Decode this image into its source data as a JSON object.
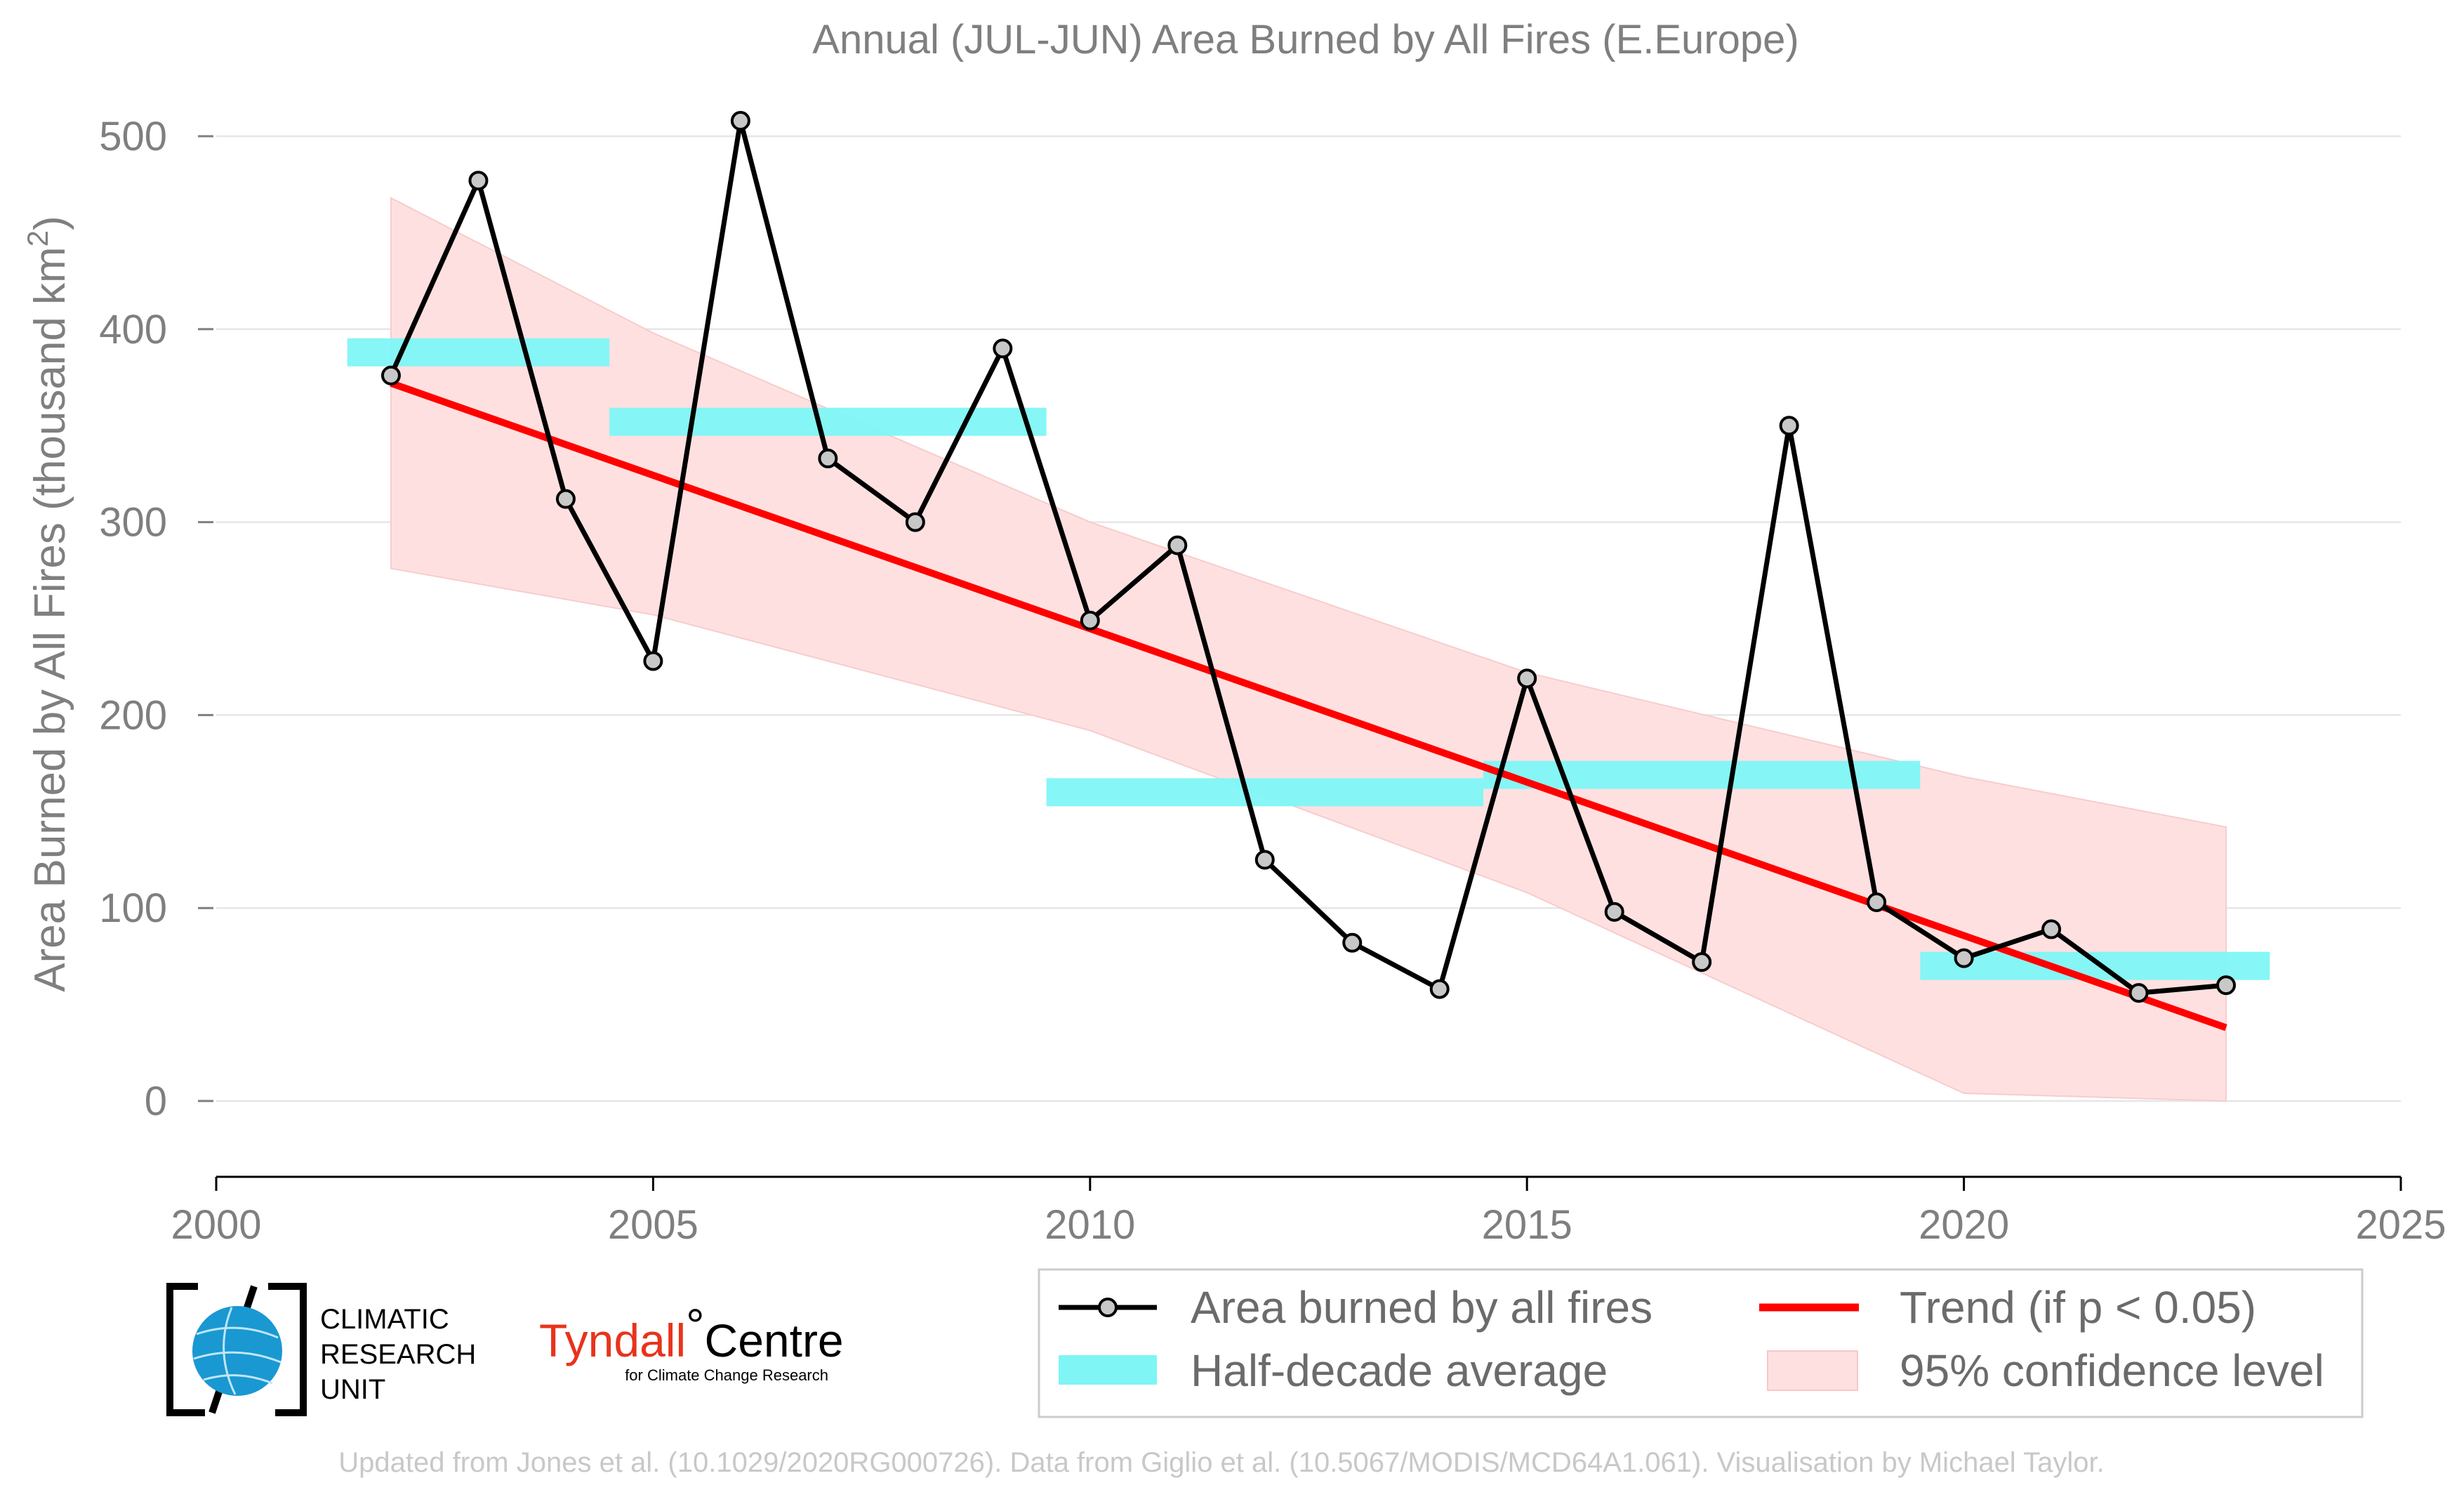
{
  "chart_data": {
    "type": "line",
    "title": "Annual (JUL-JUN) Area Burned by All Fires (E.Europe)",
    "ylabel": "Area Burned by All Fires (thousand km",
    "ylabel_sup": "2",
    "ylabel_end": ")",
    "xlabel": "",
    "xlim": [
      2000,
      2025
    ],
    "ylim": [
      -40,
      510
    ],
    "x_ticks": [
      2000,
      2005,
      2010,
      2015,
      2020,
      2025
    ],
    "y_ticks": [
      0,
      100,
      200,
      300,
      400,
      500
    ],
    "grid": true,
    "legend_position": "bottom-right",
    "series": [
      {
        "name": "Area burned by all fires",
        "x": [
          2002,
          2003,
          2004,
          2005,
          2006,
          2007,
          2008,
          2009,
          2010,
          2011,
          2012,
          2013,
          2014,
          2015,
          2016,
          2017,
          2018,
          2019,
          2020,
          2021,
          2022,
          2023
        ],
        "values": [
          376,
          477,
          312,
          228,
          508,
          333,
          300,
          390,
          249,
          288,
          125,
          82,
          58,
          219,
          98,
          72,
          350,
          103,
          74,
          89,
          56,
          60
        ]
      }
    ],
    "half_decade_average": {
      "name": "Half-decade average",
      "bars": [
        {
          "x_start": 2001.5,
          "x_end": 2004.5,
          "value": 388
        },
        {
          "x_start": 2004.5,
          "x_end": 2009.5,
          "value": 352
        },
        {
          "x_start": 2009.5,
          "x_end": 2014.5,
          "value": 160
        },
        {
          "x_start": 2014.5,
          "x_end": 2019.5,
          "value": 169
        },
        {
          "x_start": 2019.5,
          "x_end": 2023.5,
          "value": 70
        }
      ]
    },
    "trend": {
      "name": "Trend (if p < 0.05)",
      "x": [
        2002,
        2023
      ],
      "values": [
        372,
        38
      ]
    },
    "confidence": {
      "name": "95% confidence level",
      "x": [
        2002,
        2005,
        2010,
        2015,
        2020,
        2023
      ],
      "upper": [
        468,
        398,
        300,
        222,
        168,
        142
      ],
      "lower": [
        276,
        252,
        192,
        108,
        4,
        0
      ]
    },
    "colors": {
      "series": "#000000",
      "marker_fill": "#c8c8c8",
      "trend": "#ff0000",
      "half_decade": "#7ff5f5",
      "confidence": "#ffe0e0",
      "grid": "#e6e6e6",
      "text": "#7f7f7f"
    }
  },
  "logos": {
    "cru_lines": [
      "CLIMATIC",
      "RESEARCH",
      "UNIT"
    ],
    "tyndall_main_a": "Tyndall",
    "tyndall_degree": "°",
    "tyndall_main_b": "Centre",
    "tyndall_sub": "for Climate Change Research"
  },
  "legend": {
    "items": [
      "Area burned by all fires",
      "Trend (if p < 0.05)",
      "Half-decade average",
      "95% confidence level"
    ]
  },
  "credit": "Updated from Jones et al. (10.1029/2020RG000726). Data from Giglio et al. (10.5067/MODIS/MCD64A1.061). Visualisation by Michael Taylor."
}
